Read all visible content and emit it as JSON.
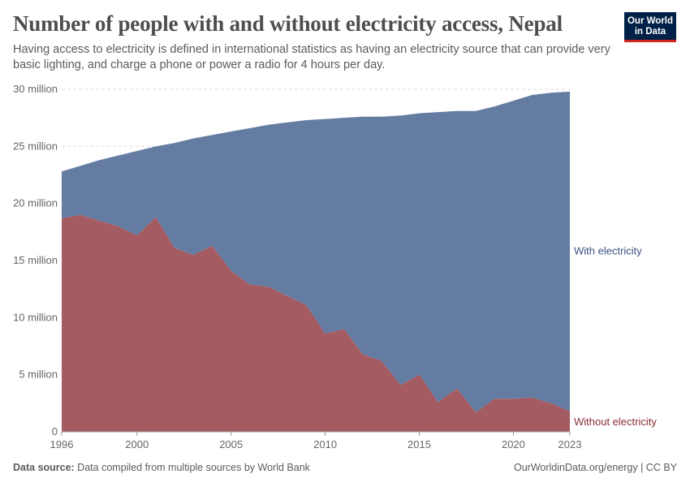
{
  "header": {
    "title": "Number of people with and without electricity access, Nepal",
    "subtitle": "Having access to electricity is defined in international statistics as having an electricity source that can provide very basic lighting, and charge a phone or power a radio for 4 hours per day.",
    "logo": "Our World in Data"
  },
  "footer": {
    "source_label": "Data source:",
    "source_text": " Data compiled from multiple sources by World Bank",
    "credit": "OurWorldinData.org/energy | CC BY"
  },
  "chart_data": {
    "type": "area",
    "stacked": true,
    "x": [
      1996,
      1997,
      1998,
      1999,
      2000,
      2001,
      2002,
      2003,
      2004,
      2005,
      2006,
      2007,
      2008,
      2009,
      2010,
      2011,
      2012,
      2013,
      2014,
      2015,
      2016,
      2017,
      2018,
      2019,
      2020,
      2021,
      2022,
      2023
    ],
    "series": [
      {
        "name": "Without electricity",
        "color": "#a2585f",
        "values": [
          18.7,
          19.0,
          18.5,
          18.0,
          17.2,
          18.8,
          16.1,
          15.5,
          16.3,
          14.1,
          12.9,
          12.7,
          11.9,
          11.1,
          8.6,
          9.0,
          6.8,
          6.2,
          4.1,
          5.0,
          2.6,
          3.8,
          1.7,
          2.9,
          2.9,
          3.0,
          2.5,
          1.8
        ]
      },
      {
        "name": "With electricity",
        "color": "#6279a0",
        "values": [
          4.1,
          4.3,
          5.3,
          6.2,
          7.4,
          6.2,
          9.2,
          10.2,
          9.7,
          12.2,
          13.7,
          14.2,
          15.2,
          16.2,
          18.8,
          18.5,
          20.8,
          21.4,
          23.6,
          22.9,
          25.4,
          24.3,
          26.4,
          25.6,
          26.1,
          26.5,
          27.2,
          28.0
        ]
      }
    ],
    "unit": "million",
    "ylim": [
      0,
      30
    ],
    "yticks": [
      0,
      5,
      10,
      15,
      20,
      25,
      30
    ],
    "ytick_labels": [
      "0",
      "5 million",
      "10 million",
      "15 million",
      "20 million",
      "25 million",
      "30 million"
    ],
    "xticks": [
      1996,
      2000,
      2005,
      2010,
      2015,
      2020,
      2023
    ],
    "xtick_labels": [
      "1996",
      "2000",
      "2005",
      "2010",
      "2015",
      "2020",
      "2023"
    ],
    "grid": true,
    "legend": "inline-right"
  }
}
